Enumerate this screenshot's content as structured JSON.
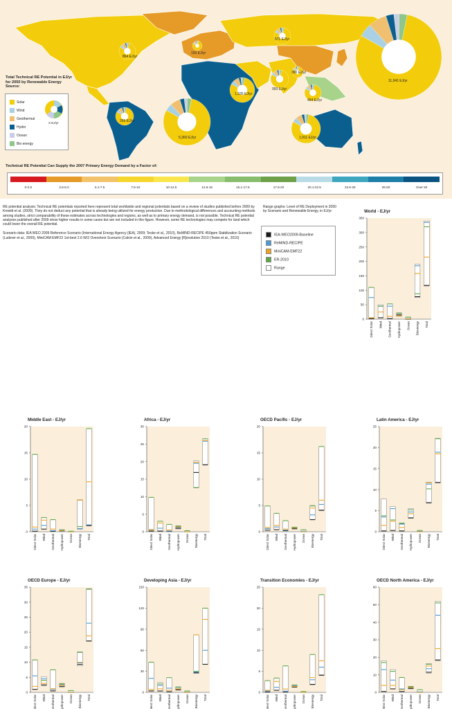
{
  "colors": {
    "solar": "#f3cc0c",
    "wind": "#a9d1e3",
    "geothermal": "#f0c070",
    "hydro": "#0b5f8e",
    "ocean": "#c9cde6",
    "bio": "#8fc68a",
    "baseline": "#1a1a1a",
    "remind": "#4a9ad6",
    "minicam": "#f0a21c",
    "er": "#59a844",
    "chart_bg": "#fbefdc"
  },
  "map": {
    "potential_title": "Total Technical RE Potential in EJ/yr for 2050 by Renewable Energy Source:",
    "legend": [
      {
        "label": "Solar",
        "color": "#f3cc0c"
      },
      {
        "label": "Wind",
        "color": "#a9d1e3"
      },
      {
        "label": "Geothermal",
        "color": "#f0c070"
      },
      {
        "label": "Hydro",
        "color": "#0b5f8e"
      },
      {
        "label": "Ocean",
        "color": "#c9cde6"
      },
      {
        "label": "Bio energy",
        "color": "#8fc68a"
      }
    ],
    "legend_pie_label": "X EJ/yr",
    "pies": [
      {
        "name": "pie-north-america",
        "label": "864 EJ/yr"
      },
      {
        "name": "pie-europe",
        "label": "193 EJ/yr"
      },
      {
        "name": "pie-transition-economies",
        "label": "571 EJ/yr"
      },
      {
        "name": "pie-middle-east",
        "label": "1,335 EJ/yr"
      },
      {
        "name": "pie-developing-asia-south",
        "label": "993 EJ/yr"
      },
      {
        "name": "pie-east-asia",
        "label": "390 EJ/yr"
      },
      {
        "name": "pie-oecd-pacific-east",
        "label": "454 EJ/yr"
      },
      {
        "name": "pie-latin-america",
        "label": "269 EJ/yr"
      },
      {
        "name": "pie-africa",
        "label": "5,360 EJ/yr"
      },
      {
        "name": "pie-australia",
        "label": "1,911 EJ/yr"
      },
      {
        "name": "pie-world",
        "label": "11,941 EJ/yr"
      }
    ],
    "factor_title": "Technical RE Potential Can Supply the 2007 Primary Energy Demand by a Factor of:",
    "factors": [
      {
        "label": "0-2.5",
        "color": "#d71920"
      },
      {
        "label": "2.6-5.0",
        "color": "#e69a28"
      },
      {
        "label": "5.1-7.5",
        "color": "#f2c36b"
      },
      {
        "label": "7.6-10",
        "color": "#f6d62c"
      },
      {
        "label": "10-12.5",
        "color": "#f9e64c"
      },
      {
        "label": "12.6-15",
        "color": "#a8d38a"
      },
      {
        "label": "15.1-17.5",
        "color": "#88bd6e"
      },
      {
        "label": "17.6-20",
        "color": "#6ea04a"
      },
      {
        "label": "20.1-22.5",
        "color": "#b9dbe6"
      },
      {
        "label": "22.6-25",
        "color": "#3ea6be"
      },
      {
        "label": "25-50",
        "color": "#1d7fa8"
      },
      {
        "label": "Over 50",
        "color": "#0b5481"
      }
    ]
  },
  "description": [
    "RE potential analysis: Technical RE potentials reported here represent total worldwide and regional potentials based on a review of studies published before 2009 by Krewitt et al. (2009). They do not deduct any potential that is already being utilized for energy production. Due to methodological differences and accounting methods among studies, strict comparability of these estimates across technologies and regions, as well as to primary energy demand, is not possible. Technical RE potential analyses published after 2009 show higher results in some cases but are not included in this figure. However, some RE technologies may compete for land which could lower the overall RE potential.",
    "Scenario data: IEA WEO 2009 Reference Scenario (International Energy Agency (IEA), 2009; Teske et al., 2010), ReMIND-RECIPE 450ppm Stabilization Scenario (Luderer et al., 2009), MiniCAM EMF22 1st-best 2.6 W/2 Overshoot Scenario (Calvin et al., 2009), Advanced Energy [R]evolution 2010 (Teske et al., 2010)"
  ],
  "range_title": "Range graphs: Level of RE Deployment in 2050 by Scenario and Renewable Energy, in EJ/yr:",
  "scenario_legend": [
    {
      "label": "IEA-WEO2009-Baseline",
      "color": "#1a1a1a"
    },
    {
      "label": "ReMIND-RECIPE",
      "color": "#4a9ad6"
    },
    {
      "label": "MiniCAM-EMF22",
      "color": "#f0a21c"
    },
    {
      "label": "ER-2010",
      "color": "#59a844"
    },
    {
      "label": "Range",
      "color": "#ffffff"
    }
  ],
  "chart_data": [
    {
      "type": "bar",
      "title": "World - EJ/yr",
      "categories": [
        "Direct Solar",
        "Wind",
        "Geothermal",
        "Hydropower",
        "Ocean",
        "Bioenergy",
        "Total"
      ],
      "ylim": [
        0,
        350
      ],
      "yticks": [
        0,
        50,
        100,
        150,
        200,
        250,
        300,
        350
      ],
      "ranges": [
        [
          2,
          110
        ],
        [
          5,
          50
        ],
        [
          2,
          53
        ],
        [
          10,
          22
        ],
        [
          0,
          7
        ],
        [
          75,
          190
        ],
        [
          115,
          340
        ]
      ],
      "series": [
        {
          "name": "IEA-WEO2009-Baseline",
          "values": [
            2,
            5,
            2,
            15,
            0,
            78,
            117
          ]
        },
        {
          "name": "ReMIND-RECIPE",
          "values": [
            75,
            45,
            45,
            20,
            2,
            185,
            335
          ]
        },
        {
          "name": "MiniCAM-EMF22",
          "values": [
            5,
            25,
            10,
            12,
            1,
            158,
            215
          ]
        },
        {
          "name": "ER-2010",
          "values": [
            110,
            45,
            53,
            20,
            7,
            88,
            320
          ]
        }
      ]
    },
    {
      "type": "bar",
      "title": "Middle East - EJ/yr",
      "categories": [
        "Direct Solar",
        "Wind",
        "Geothermal",
        "Hydropower",
        "Ocean",
        "Bioenergy",
        "Total"
      ],
      "ylim": [
        0,
        20
      ],
      "yticks": [
        0,
        5,
        10,
        15,
        20
      ],
      "ranges": [
        [
          0.1,
          14.7
        ],
        [
          0.5,
          2.7
        ],
        [
          0.1,
          2.3
        ],
        [
          0.1,
          0.4
        ],
        [
          0,
          0.1
        ],
        [
          0.5,
          6.1
        ],
        [
          1.1,
          19.6
        ]
      ],
      "series": [
        {
          "name": "IEA-WEO2009-Baseline",
          "values": [
            0.1,
            0.5,
            0.1,
            0.2,
            0,
            0.6,
            1.2
          ]
        },
        {
          "name": "ReMIND-RECIPE",
          "values": [
            0.5,
            1.2,
            0.2,
            0.3,
            0,
            0.6,
            1.3
          ]
        },
        {
          "name": "MiniCAM-EMF22",
          "values": [
            0.9,
            2.2,
            0.5,
            0.2,
            0,
            6,
            9.5
          ]
        },
        {
          "name": "ER-2010",
          "values": [
            14.7,
            2.7,
            2.3,
            0.3,
            0.1,
            1.0,
            19.6
          ]
        }
      ]
    },
    {
      "type": "bar",
      "title": "Africa - EJ/yr",
      "categories": [
        "Direct Solar",
        "Wind",
        "Geothermal",
        "Hydropower",
        "Ocean",
        "Bioenergy",
        "Total"
      ],
      "ylim": [
        0,
        30
      ],
      "yticks": [
        0,
        5,
        10,
        15,
        20,
        25,
        30
      ],
      "ranges": [
        [
          0.2,
          9.8
        ],
        [
          0.2,
          3.0
        ],
        [
          0.1,
          2.1
        ],
        [
          0.8,
          1.7
        ],
        [
          0,
          0.3
        ],
        [
          12.5,
          20.2
        ],
        [
          19,
          26.5
        ]
      ],
      "series": [
        {
          "name": "IEA-WEO2009-Baseline",
          "values": [
            0.2,
            0.2,
            0.1,
            1.0,
            0,
            16.9,
            19.1
          ]
        },
        {
          "name": "ReMIND-RECIPE",
          "values": [
            0.6,
            1.0,
            0.2,
            1.3,
            0,
            19.5,
            25.8
          ]
        },
        {
          "name": "MiniCAM-EMF22",
          "values": [
            0.5,
            2.5,
            0.5,
            1.4,
            0,
            19.8,
            26
          ]
        },
        {
          "name": "ER-2010",
          "values": [
            9.8,
            3.0,
            2.1,
            1.6,
            0.3,
            12.6,
            26.5
          ]
        }
      ]
    },
    {
      "type": "bar",
      "title": "OECD Pacific - EJ/yr",
      "categories": [
        "Direct Solar",
        "Wind",
        "Geothermal",
        "Hydropower",
        "Ocean",
        "Bioenergy",
        "Total"
      ],
      "ylim": [
        0,
        20
      ],
      "yticks": [
        0,
        5,
        10,
        15,
        20
      ],
      "ranges": [
        [
          0.3,
          4.9
        ],
        [
          0.4,
          3.5
        ],
        [
          0.2,
          2.1
        ],
        [
          0.5,
          0.9
        ],
        [
          0,
          0.4
        ],
        [
          2.3,
          5.0
        ],
        [
          4.0,
          16.2
        ]
      ],
      "series": [
        {
          "name": "IEA-WEO2009-Baseline",
          "values": [
            0.3,
            0.4,
            0.2,
            0.6,
            0,
            2.3,
            4.1
          ]
        },
        {
          "name": "ReMIND-RECIPE",
          "values": [
            0.6,
            0.9,
            0.3,
            0.7,
            0.1,
            3.2,
            5.2
          ]
        },
        {
          "name": "MiniCAM-EMF22",
          "values": [
            0.8,
            1.2,
            0.5,
            0.7,
            0,
            4.5,
            6
          ]
        },
        {
          "name": "ER-2010",
          "values": [
            4.9,
            3.5,
            2.1,
            0.8,
            0.4,
            4.9,
            16.2
          ]
        }
      ]
    },
    {
      "type": "bar",
      "title": "Latin America - EJ/yr",
      "categories": [
        "Direct Solar",
        "Wind",
        "Geothermal",
        "Hydropower",
        "Ocean",
        "Bioenergy",
        "Total"
      ],
      "ylim": [
        0,
        25
      ],
      "yticks": [
        0,
        5,
        10,
        15,
        20,
        25
      ],
      "ranges": [
        [
          0.2,
          7.8
        ],
        [
          0.3,
          6.0
        ],
        [
          0.2,
          2.1
        ],
        [
          3.2,
          5.5
        ],
        [
          0,
          0.3
        ],
        [
          6.8,
          11.8
        ],
        [
          11.6,
          22.2
        ]
      ],
      "series": [
        {
          "name": "IEA-WEO2009-Baseline",
          "values": [
            0.2,
            0.3,
            0.2,
            3.3,
            0,
            6.9,
            11.7
          ]
        },
        {
          "name": "ReMIND-RECIPE",
          "values": [
            3.5,
            5.5,
            1.8,
            4.7,
            0.1,
            11.3,
            18.9
          ]
        },
        {
          "name": "MiniCAM-EMF22",
          "values": [
            1.5,
            2.5,
            1.0,
            4.3,
            0,
            11.6,
            18.5
          ]
        },
        {
          "name": "ER-2010",
          "values": [
            3.8,
            2.8,
            2.0,
            5.2,
            0.3,
            10.2,
            22.1
          ]
        }
      ]
    },
    {
      "type": "bar",
      "title": "OECD Europe - EJ/yr",
      "categories": [
        "Direct Solar",
        "Wind",
        "Geothermal",
        "Hydropower",
        "Ocean",
        "Bioenergy",
        "Total"
      ],
      "ylim": [
        0,
        35
      ],
      "yticks": [
        0,
        5,
        10,
        15,
        20,
        25,
        30,
        35
      ],
      "ranges": [
        [
          1.0,
          10.8
        ],
        [
          2.2,
          5.2
        ],
        [
          0.5,
          7.5
        ],
        [
          1.8,
          3.0
        ],
        [
          0,
          0.6
        ],
        [
          8.8,
          13.5
        ],
        [
          17.0,
          34.5
        ]
      ],
      "series": [
        {
          "name": "IEA-WEO2009-Baseline",
          "values": [
            1.0,
            2.5,
            0.5,
            2.0,
            0,
            9.3,
            17.1
          ]
        },
        {
          "name": "ReMIND-RECIPE",
          "values": [
            5.5,
            4.5,
            1.0,
            2.6,
            0.1,
            9.8,
            23.0
          ]
        },
        {
          "name": "MiniCAM-EMF22",
          "values": [
            2.0,
            3.0,
            1.2,
            2.4,
            0,
            10.0,
            18.8
          ]
        },
        {
          "name": "ER-2010",
          "values": [
            10.8,
            4.0,
            7.5,
            2.8,
            0.6,
            13.3,
            34.3
          ]
        }
      ]
    },
    {
      "type": "bar",
      "title": "Developing Asia - EJ/yr",
      "categories": [
        "Direct Solar",
        "Wind",
        "Geothermal",
        "Hydropower",
        "Ocean",
        "Bioenergy",
        "Total"
      ],
      "ylim": [
        0,
        150
      ],
      "yticks": [
        0,
        30,
        60,
        90,
        120,
        150
      ],
      "ranges": [
        [
          2,
          43
        ],
        [
          2,
          14
        ],
        [
          1,
          21
        ],
        [
          3,
          8
        ],
        [
          0,
          2
        ],
        [
          27,
          82
        ],
        [
          40,
          120
        ]
      ],
      "series": [
        {
          "name": "IEA-WEO2009-Baseline",
          "values": [
            2,
            2,
            1,
            4,
            0,
            28,
            40
          ]
        },
        {
          "name": "ReMIND-RECIPE",
          "values": [
            20,
            10,
            6,
            7,
            0.5,
            29,
            60
          ]
        },
        {
          "name": "MiniCAM-EMF22",
          "values": [
            4,
            5,
            3,
            5,
            0,
            82,
            104
          ]
        },
        {
          "name": "ER-2010",
          "values": [
            43,
            12,
            21,
            7,
            2,
            30,
            120
          ]
        }
      ]
    },
    {
      "type": "bar",
      "title": "Transition Economies - EJ/yr",
      "categories": [
        "Direct Solar",
        "Wind",
        "Geothermal",
        "Hydropower",
        "Ocean",
        "Bioenergy",
        "Total"
      ],
      "ylim": [
        0,
        25
      ],
      "yticks": [
        0,
        5,
        10,
        15,
        20,
        25
      ],
      "ranges": [
        [
          0.1,
          2.8
        ],
        [
          0.5,
          3.4
        ],
        [
          0.1,
          6.3
        ],
        [
          1.2,
          1.8
        ],
        [
          0,
          0.2
        ],
        [
          1.8,
          9.0
        ],
        [
          4.0,
          23.2
        ]
      ],
      "series": [
        {
          "name": "IEA-WEO2009-Baseline",
          "values": [
            0.1,
            0.5,
            0.1,
            1.3,
            0,
            1.9,
            4.1
          ]
        },
        {
          "name": "ReMIND-RECIPE",
          "values": [
            0.3,
            1.2,
            0.3,
            1.5,
            0,
            3.0,
            6.0
          ]
        },
        {
          "name": "MiniCAM-EMF22",
          "values": [
            0.5,
            2.6,
            0.8,
            1.4,
            0,
            3.5,
            7.5
          ]
        },
        {
          "name": "ER-2010",
          "values": [
            2.8,
            3.4,
            6.3,
            1.7,
            0.2,
            9.0,
            23.2
          ]
        }
      ]
    },
    {
      "type": "bar",
      "title": "OECD North America - EJ/yr",
      "categories": [
        "Direct Solar",
        "Wind",
        "Geothermal",
        "Hydropower",
        "Ocean",
        "Bioenergy",
        "Total"
      ],
      "ylim": [
        0,
        60
      ],
      "yticks": [
        0,
        10,
        20,
        30,
        40,
        50,
        60
      ],
      "ranges": [
        [
          0.5,
          18
        ],
        [
          2,
          13
        ],
        [
          0.5,
          8.5
        ],
        [
          2.0,
          3.5
        ],
        [
          0,
          1.5
        ],
        [
          11,
          16.5
        ],
        [
          18,
          52
        ]
      ],
      "series": [
        {
          "name": "IEA-WEO2009-Baseline",
          "values": [
            0.5,
            2,
            0.5,
            2.3,
            0,
            11.5,
            18.5
          ]
        },
        {
          "name": "ReMIND-RECIPE",
          "values": [
            13,
            7,
            2,
            3,
            0.3,
            13.5,
            44
          ]
        },
        {
          "name": "MiniCAM-EMF22",
          "values": [
            4,
            4,
            1.5,
            2.8,
            0,
            15,
            25
          ]
        },
        {
          "name": "ER-2010",
          "values": [
            17,
            12,
            8.5,
            3.2,
            1.5,
            16,
            51
          ]
        }
      ]
    }
  ]
}
